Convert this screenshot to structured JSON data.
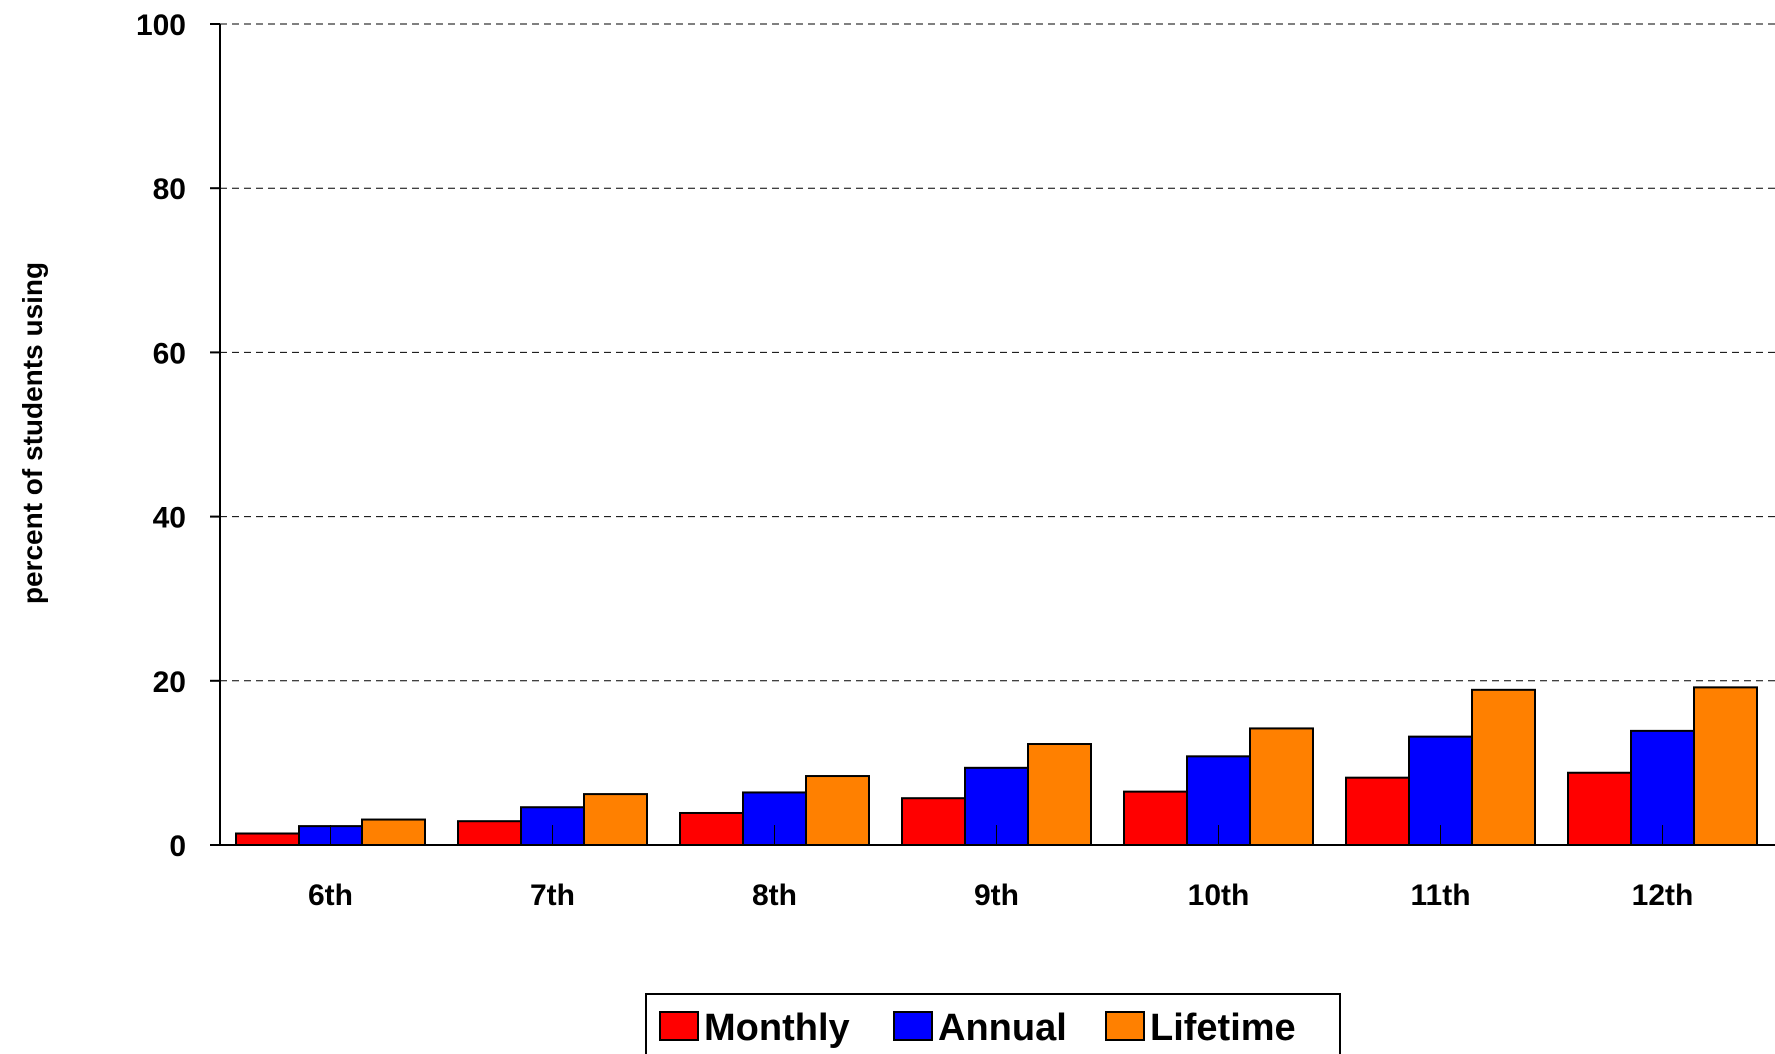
{
  "chart_data": {
    "type": "bar",
    "categories": [
      "6th",
      "7th",
      "8th",
      "9th",
      "10th",
      "11th",
      "12th"
    ],
    "series": [
      {
        "name": "Monthly",
        "color": "#ff0000",
        "values": [
          1.4,
          2.9,
          3.9,
          5.7,
          6.5,
          8.2,
          8.8
        ]
      },
      {
        "name": "Annual",
        "color": "#0000ff",
        "values": [
          2.3,
          4.6,
          6.4,
          9.4,
          10.8,
          13.2,
          13.9
        ]
      },
      {
        "name": "Lifetime",
        "color": "#ff8000",
        "values": [
          3.1,
          6.2,
          8.4,
          12.3,
          14.2,
          18.9,
          19.2
        ]
      }
    ],
    "ylabel": "percent of students using",
    "xlabel": "",
    "ylim": [
      0,
      100
    ],
    "yticks": [
      0,
      20,
      40,
      60,
      80,
      100
    ],
    "grid": true,
    "legend_position": "bottom-center"
  }
}
